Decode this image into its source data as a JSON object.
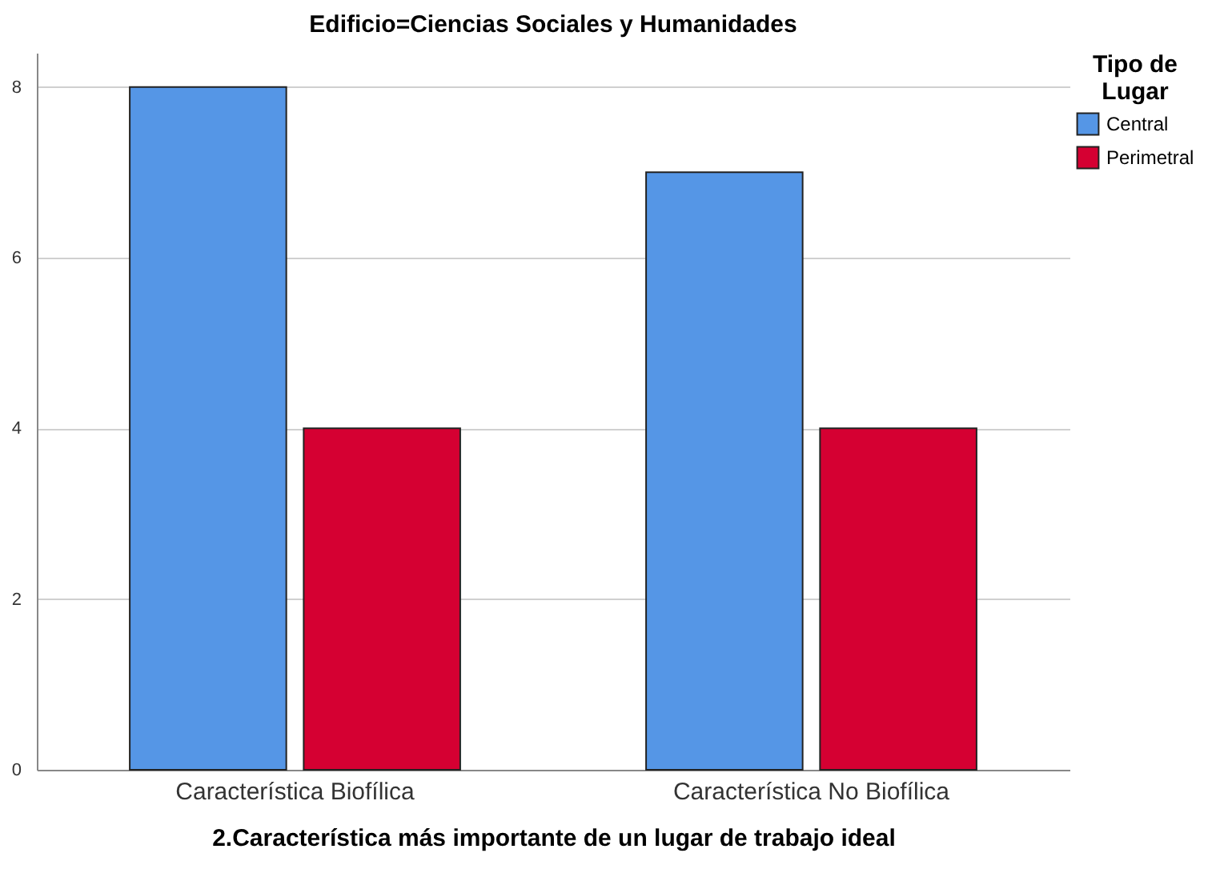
{
  "chart_data": {
    "type": "bar",
    "title": "Edificio=Ciencias Sociales y Humanidades",
    "xlabel": "2.Característica más importante de un lugar de trabajo ideal",
    "legend_title": "Tipo de Lugar",
    "categories": [
      "Característica Biofílica",
      "Característica No Biofílica"
    ],
    "series": [
      {
        "name": "Central",
        "color": "#5596e6",
        "values": [
          8,
          7
        ]
      },
      {
        "name": "Perimetral",
        "color": "#d50032",
        "values": [
          4,
          4
        ]
      }
    ],
    "ylim": [
      0,
      8.4
    ],
    "yticks": [
      0,
      2,
      4,
      6,
      8
    ],
    "grid": "y",
    "legend": "top right"
  }
}
